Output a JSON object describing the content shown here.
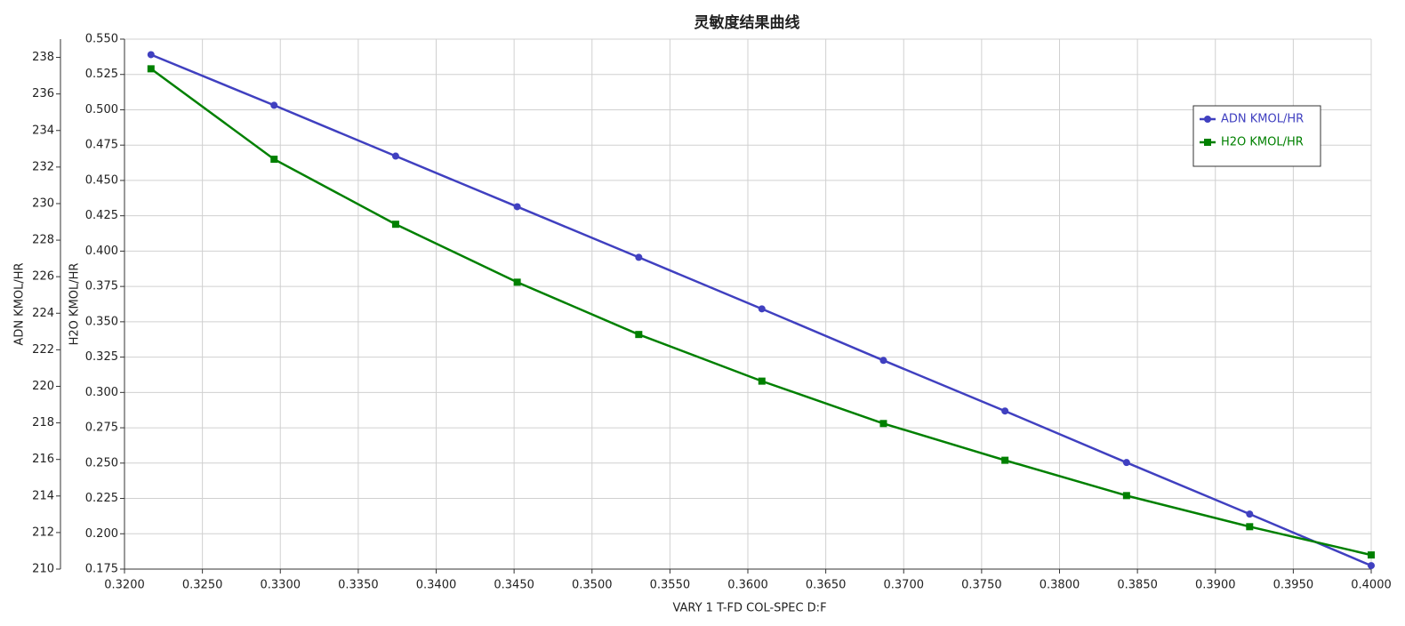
{
  "chart_data": {
    "type": "line",
    "title": "灵敏度结果曲线",
    "xlabel": "VARY   1 T-FD COL-SPEC D:F",
    "ylabel": "ADN KMOL/HR",
    "y2label": "H2O KMOL/HR",
    "x": [
      0.3217,
      0.3296,
      0.3374,
      0.3452,
      0.353,
      0.3609,
      0.3687,
      0.3765,
      0.3843,
      0.3922,
      0.4
    ],
    "series": [
      {
        "name": "ADN KMOL/HR",
        "color": "#4040c0",
        "marker": "circle",
        "axis": "y",
        "values": [
          238.15,
          235.38,
          232.6,
          229.83,
          227.06,
          224.24,
          221.42,
          218.65,
          215.83,
          213.01,
          210.19
        ]
      },
      {
        "name": "H2O KMOL/HR",
        "color": "#008000",
        "marker": "square",
        "axis": "y2",
        "values": [
          0.529,
          0.465,
          0.419,
          0.378,
          0.341,
          0.308,
          0.278,
          0.252,
          0.227,
          0.205,
          0.185
        ]
      }
    ],
    "xlim": [
      0.32,
      0.4
    ],
    "xticks": [
      {
        "value": 0.32,
        "label": "0.3200"
      },
      {
        "value": 0.325,
        "label": "0.3250"
      },
      {
        "value": 0.33,
        "label": "0.3300"
      },
      {
        "value": 0.335,
        "label": "0.3350"
      },
      {
        "value": 0.34,
        "label": "0.3400"
      },
      {
        "value": 0.345,
        "label": "0.3450"
      },
      {
        "value": 0.35,
        "label": "0.3500"
      },
      {
        "value": 0.355,
        "label": "0.3550"
      },
      {
        "value": 0.36,
        "label": "0.3600"
      },
      {
        "value": 0.365,
        "label": "0.3650"
      },
      {
        "value": 0.37,
        "label": "0.3700"
      },
      {
        "value": 0.375,
        "label": "0.3750"
      },
      {
        "value": 0.38,
        "label": "0.3800"
      },
      {
        "value": 0.385,
        "label": "0.3850"
      },
      {
        "value": 0.39,
        "label": "0.3900"
      },
      {
        "value": 0.395,
        "label": "0.3950"
      },
      {
        "value": 0.4,
        "label": "0.4000"
      }
    ],
    "ylim": [
      210,
      239
    ],
    "yticks": [
      210,
      212,
      214,
      216,
      218,
      220,
      222,
      224,
      226,
      228,
      230,
      232,
      234,
      236,
      238
    ],
    "y2lim": [
      0.175,
      0.55
    ],
    "y2ticks": [
      0.175,
      {
        "value": 0.2,
        "label": "0.200"
      },
      0.225,
      {
        "value": 0.25,
        "label": "0.250"
      },
      0.275,
      {
        "value": 0.3,
        "label": "0.300"
      },
      0.325,
      {
        "value": 0.35,
        "label": "0.350"
      },
      0.375,
      {
        "value": 0.4,
        "label": "0.400"
      },
      0.425,
      {
        "value": 0.45,
        "label": "0.450"
      },
      0.475,
      {
        "value": 0.5,
        "label": "0.500"
      },
      0.525,
      {
        "value": 0.55,
        "label": "0.550"
      }
    ],
    "grid": true,
    "legend": "upper right"
  }
}
